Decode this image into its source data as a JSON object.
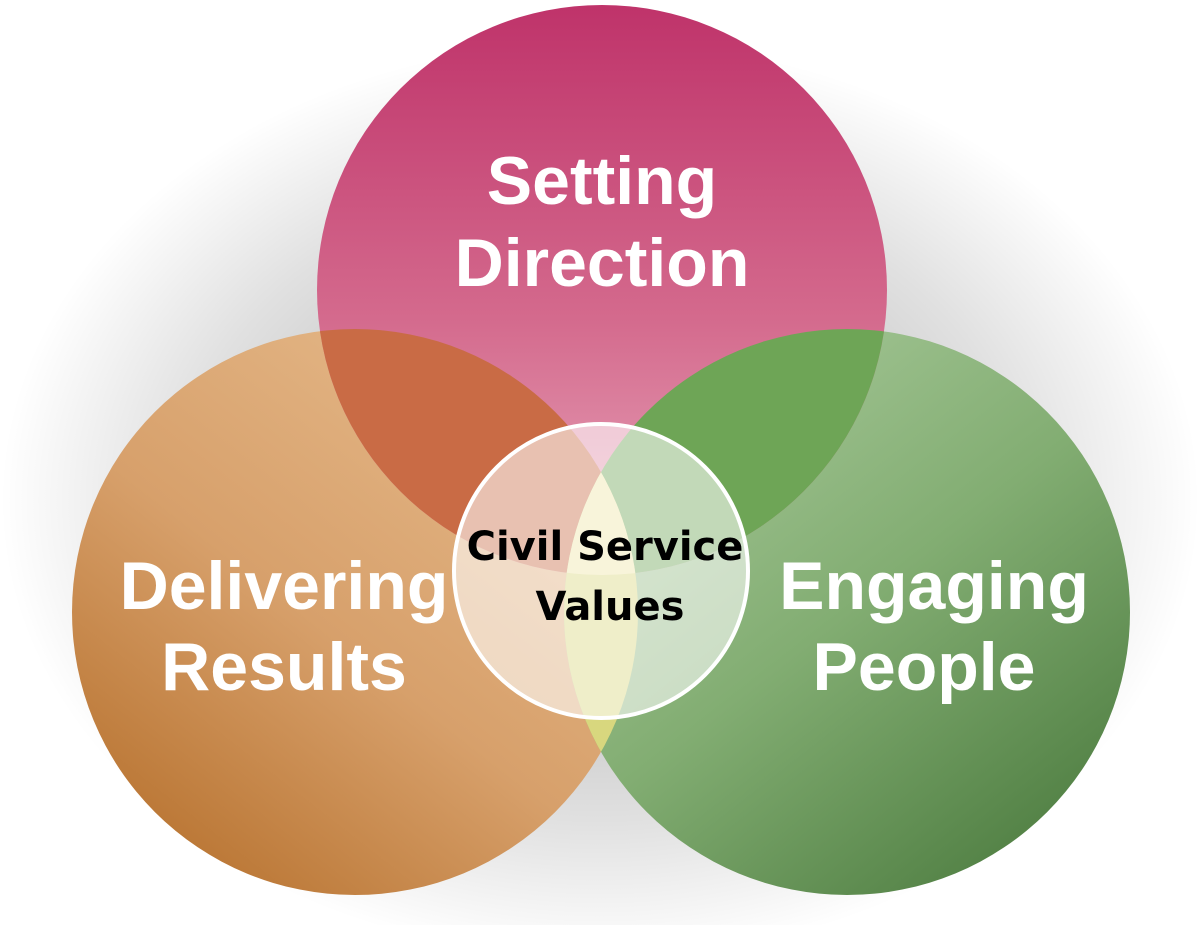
{
  "diagram": {
    "circles": [
      {
        "id": "top",
        "lines": [
          "Setting",
          "Direction"
        ]
      },
      {
        "id": "left",
        "lines": [
          "Delivering",
          "Results"
        ]
      },
      {
        "id": "right",
        "lines": [
          "Engaging",
          "People"
        ]
      }
    ],
    "center": {
      "lines": [
        "Civil Service",
        "Values"
      ]
    }
  },
  "colors": {
    "top": "#c63d72",
    "left": "#c98544",
    "right": "#6fa05e",
    "center_ring": "#ffffff"
  }
}
